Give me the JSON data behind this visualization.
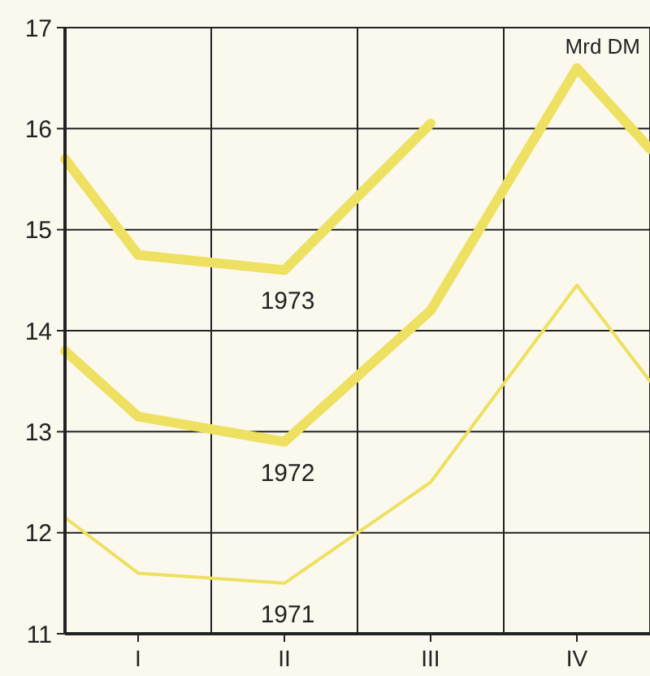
{
  "chart_data": {
    "type": "line",
    "ylabel": "Mrd DM",
    "categories": [
      null,
      "I",
      null,
      "II",
      null,
      "III",
      null,
      "IV",
      null
    ],
    "ylim": [
      11,
      17
    ],
    "yticks": [
      11,
      12,
      13,
      14,
      15,
      16,
      17
    ],
    "grid": true,
    "marker": "none",
    "line_style": "solid",
    "series": [
      {
        "name": "1973",
        "color": "#eee060",
        "values": [
          15.7,
          14.75,
          null,
          14.6,
          null,
          16.05,
          null,
          null,
          null
        ]
      },
      {
        "name": "1972",
        "color": "#eee060",
        "values": [
          13.8,
          13.15,
          null,
          12.9,
          null,
          14.2,
          null,
          16.6,
          15.8
        ]
      },
      {
        "name": "1971",
        "color": "#eee060",
        "values": [
          12.15,
          11.6,
          null,
          11.5,
          null,
          12.5,
          null,
          14.45,
          13.5
        ]
      }
    ]
  }
}
